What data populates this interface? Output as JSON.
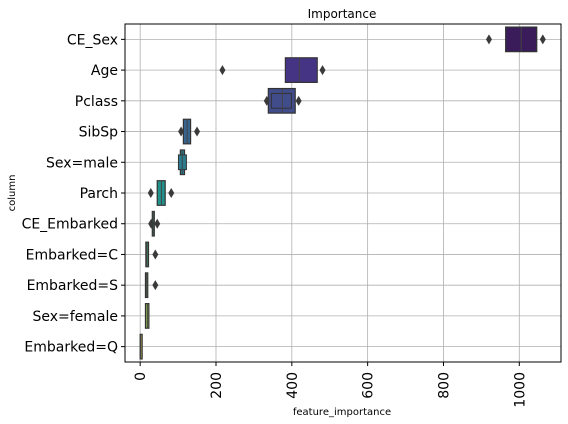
{
  "chart_data": {
    "type": "boxen",
    "title": "Importance",
    "xlabel": "feature_importance",
    "ylabel": "column",
    "xlim": [
      -40,
      1110
    ],
    "xticks": [
      0,
      200,
      400,
      600,
      800,
      1000
    ],
    "grid": true,
    "orientation": "horizontal",
    "categories": [
      "CE_Sex",
      "Age",
      "Pclass",
      "SibSp",
      "Sex=male",
      "Parch",
      "CE_Embarked",
      "Embarked=C",
      "Embarked=S",
      "Sex=female",
      "Embarked=Q"
    ],
    "series": [
      {
        "category": "CE_Sex",
        "box": [
          964,
          1046
        ],
        "median": 1005,
        "outliers": [
          920,
          1062
        ],
        "color": "#3b1c5a"
      },
      {
        "category": "Age",
        "box": [
          383,
          467
        ],
        "median": 420,
        "outliers": [
          217,
          481
        ],
        "color": "#453484"
      },
      {
        "category": "Pclass",
        "box": [
          338,
          409
        ],
        "inner": [
          346,
          399
        ],
        "median": 375,
        "outliers": [
          334,
          418
        ],
        "color": "#414c8a"
      },
      {
        "category": "SibSp",
        "box": [
          114,
          133
        ],
        "median": 124,
        "outliers": [
          108,
          150
        ],
        "color": "#36648e"
      },
      {
        "category": "Sex=male",
        "box": [
          106,
          117
        ],
        "inner": [
          101,
          122
        ],
        "median": 111,
        "outliers": [],
        "color": "#2b7c8e"
      },
      {
        "category": "Parch",
        "box": [
          45,
          66
        ],
        "median": 56,
        "outliers": [
          28,
          82
        ],
        "color": "#21918c"
      },
      {
        "category": "CE_Embarked",
        "box": [
          32,
          36
        ],
        "median": 34,
        "outliers": [
          29,
          45
        ],
        "color": "#23a680"
      },
      {
        "category": "Embarked=C",
        "box": [
          15,
          22
        ],
        "median": 18,
        "outliers": [
          40
        ],
        "color": "#3ab076"
      },
      {
        "category": "Embarked=S",
        "box": [
          14,
          20
        ],
        "median": 17,
        "outliers": [
          40
        ],
        "color": "#5cb35a"
      },
      {
        "category": "Sex=female",
        "box": [
          14,
          23
        ],
        "median": 19,
        "outliers": [],
        "color": "#8ab04e"
      },
      {
        "category": "Embarked=Q",
        "box": [
          0,
          3
        ],
        "median": 1,
        "outliers": [],
        "color": "#b2a84a"
      }
    ]
  }
}
